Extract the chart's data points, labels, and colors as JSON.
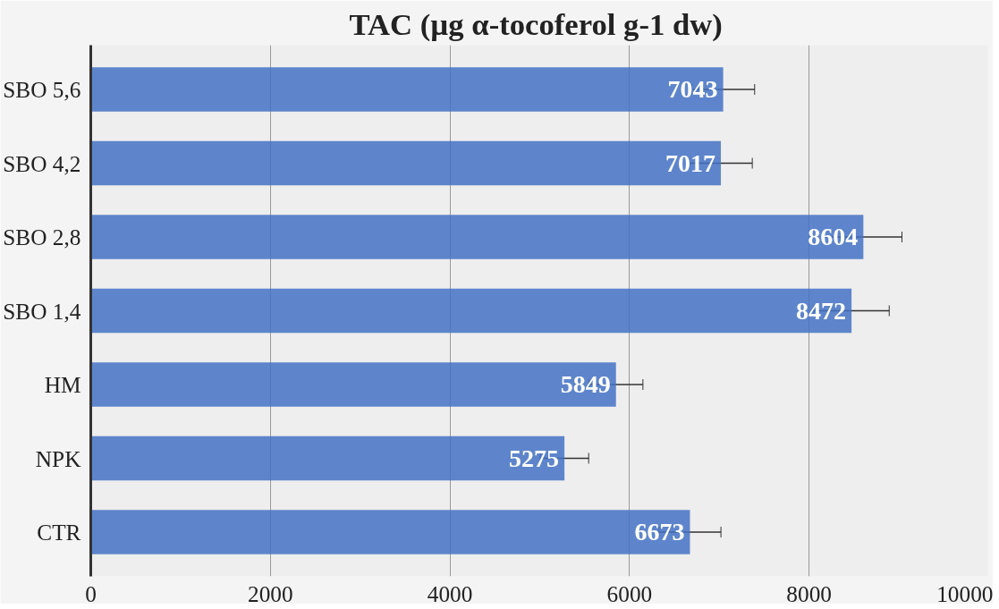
{
  "chart_data": {
    "type": "bar",
    "orientation": "horizontal",
    "title": "TAC (µg  α-tocoferol g-1 dw)",
    "categories": [
      "SBO 5,6",
      "SBO 4,2",
      "SBO 2,8",
      "SBO 1,4",
      "HM",
      "NPK",
      "CTR"
    ],
    "values": [
      7043,
      7017,
      8604,
      8472,
      5849,
      5275,
      6673
    ],
    "errors": [
      350,
      350,
      430,
      420,
      300,
      270,
      345
    ],
    "color": "#4472c4",
    "xlim": [
      0,
      10000
    ],
    "xticks": [
      0,
      2000,
      4000,
      6000,
      8000,
      10000
    ],
    "grid": "x",
    "data_labels": true
  }
}
